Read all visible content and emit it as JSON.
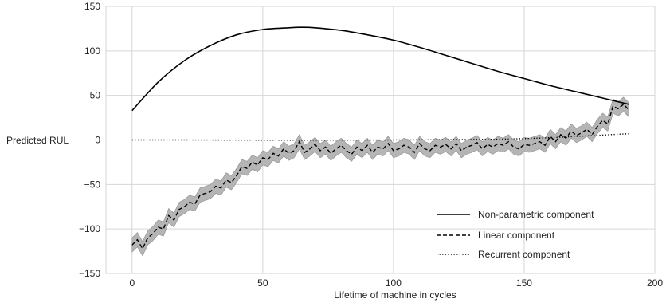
{
  "chart_data": {
    "type": "line",
    "xlabel": "Lifetime of machine in cycles",
    "ylabel": "Predicted RUL",
    "xlim": [
      -10,
      200
    ],
    "ylim": [
      -150,
      150
    ],
    "x_ticks": [
      0,
      50,
      100,
      150,
      200
    ],
    "y_ticks": [
      -150,
      -100,
      -50,
      0,
      50,
      100,
      150
    ],
    "x_tick_labels": [
      "0",
      "50",
      "100",
      "150",
      "200"
    ],
    "y_tick_labels": [
      "−150",
      "−100",
      "−50",
      "0",
      "50",
      "100",
      "150"
    ],
    "grid": true,
    "legend_position": "lower-right",
    "series": [
      {
        "name": "Non-parametric component",
        "style": "solid",
        "color": "#000000",
        "x": [
          0,
          10,
          20,
          30,
          40,
          50,
          60,
          64,
          70,
          80,
          90,
          100,
          110,
          120,
          130,
          140,
          150,
          160,
          170,
          180,
          190
        ],
        "y": [
          33,
          65,
          89,
          106,
          118,
          124,
          126,
          126.5,
          126,
          123,
          118,
          112,
          104,
          95,
          86,
          77,
          69,
          61,
          54,
          47,
          40
        ]
      },
      {
        "name": "Linear component",
        "style": "dashed",
        "color": "#000000",
        "band_color": "#b5b5b5",
        "x": [
          0,
          2,
          4,
          6,
          8,
          10,
          12,
          14,
          16,
          18,
          20,
          22,
          24,
          26,
          28,
          30,
          32,
          34,
          36,
          38,
          40,
          42,
          44,
          46,
          48,
          50,
          52,
          54,
          56,
          58,
          60,
          62,
          64,
          66,
          68,
          70,
          72,
          74,
          76,
          78,
          80,
          82,
          84,
          86,
          88,
          90,
          92,
          94,
          96,
          98,
          100,
          102,
          104,
          106,
          108,
          110,
          112,
          114,
          116,
          118,
          120,
          122,
          124,
          126,
          128,
          130,
          132,
          134,
          136,
          138,
          140,
          142,
          144,
          146,
          148,
          150,
          152,
          154,
          156,
          158,
          160,
          162,
          164,
          166,
          168,
          170,
          172,
          174,
          176,
          178,
          180,
          182,
          184,
          186,
          188,
          190
        ],
        "y": [
          -118,
          -112,
          -122,
          -110,
          -105,
          -98,
          -100,
          -85,
          -90,
          -78,
          -75,
          -70,
          -72,
          -62,
          -60,
          -58,
          -52,
          -54,
          -45,
          -48,
          -40,
          -30,
          -32,
          -25,
          -28,
          -20,
          -22,
          -15,
          -18,
          -10,
          -15,
          -12,
          -2,
          -14,
          -10,
          -5,
          -12,
          -8,
          -15,
          -10,
          -6,
          -12,
          -16,
          -8,
          -12,
          -6,
          -14,
          -8,
          -10,
          -4,
          -12,
          -10,
          -6,
          -8,
          -14,
          -4,
          -10,
          -12,
          -6,
          -8,
          -5,
          -10,
          -4,
          -12,
          -8,
          -6,
          -3,
          -10,
          -5,
          -8,
          -4,
          -6,
          -2,
          -8,
          -10,
          -5,
          -6,
          -4,
          -2,
          -6,
          4,
          -2,
          6,
          2,
          10,
          5,
          8,
          12,
          6,
          15,
          22,
          18,
          38,
          35,
          40,
          34
        ],
        "band_halfwidth": 8
      },
      {
        "name": "Recurrent component",
        "style": "dotted",
        "color": "#000000",
        "x": [
          0,
          20,
          40,
          60,
          80,
          100,
          120,
          140,
          150,
          160,
          170,
          180,
          190
        ],
        "y": [
          0,
          0,
          -0.2,
          -0.3,
          -0.2,
          0,
          0.3,
          0.8,
          1.5,
          2.5,
          4,
          5.5,
          7
        ]
      }
    ]
  }
}
